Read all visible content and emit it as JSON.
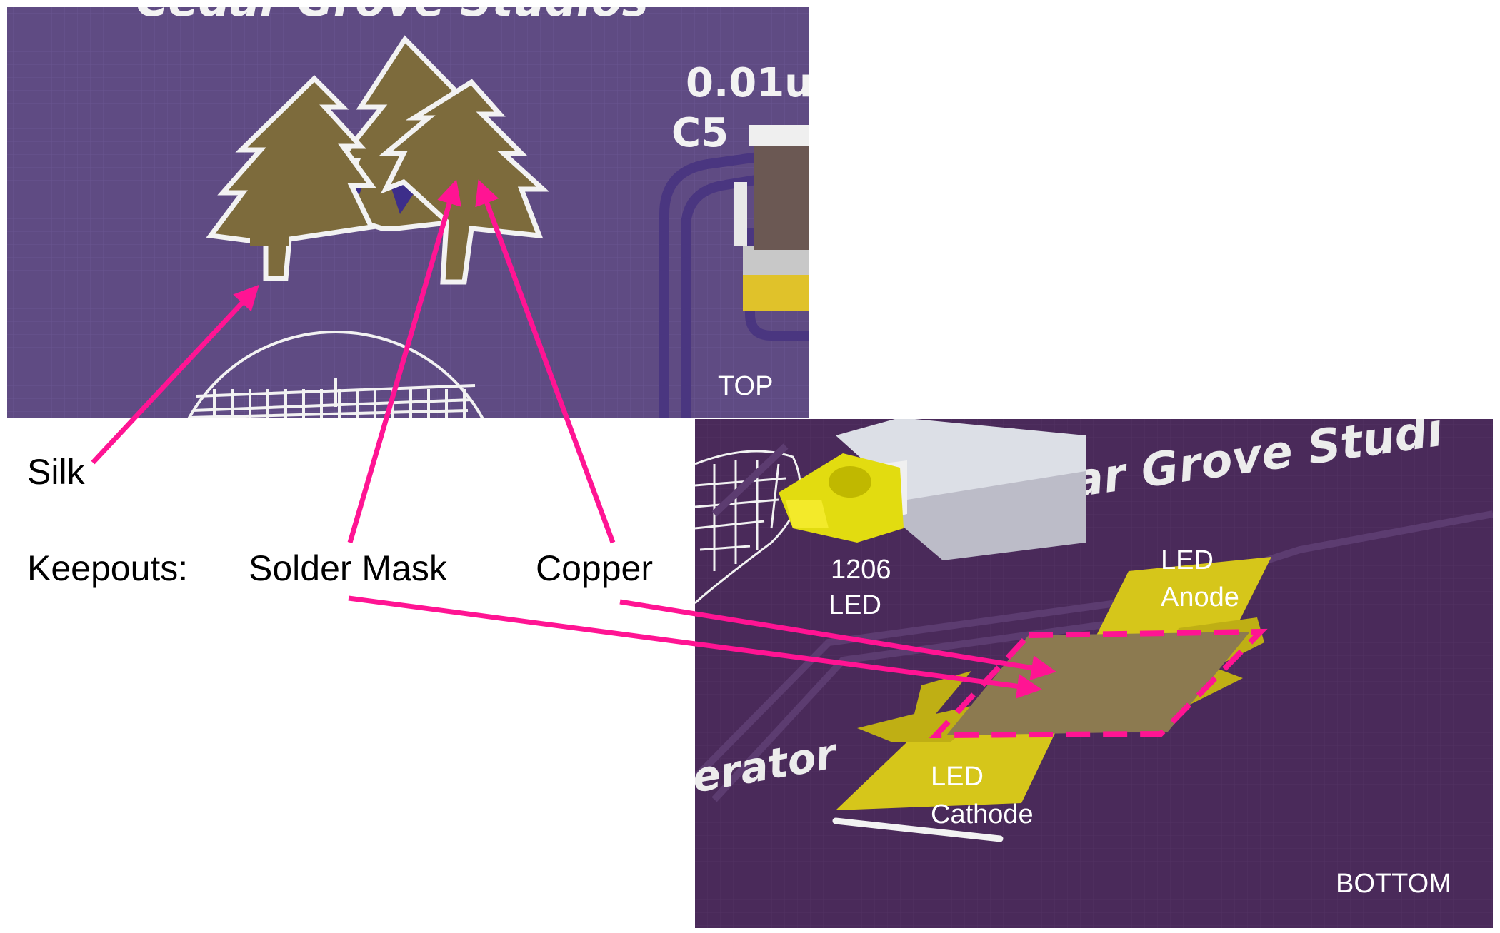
{
  "top_view": {
    "view_label": "TOP",
    "header_text": "Cedar Grove Studios",
    "cap_value": "0.01u",
    "cap_ref": "C5"
  },
  "bottom_view": {
    "view_label": "BOTTOM",
    "header_text": "Cedar Grove Studi",
    "side_text": "erator",
    "led_label_line1": "1206",
    "led_label_line2": "LED",
    "anode_line1": "LED",
    "anode_line2": "Anode",
    "cathode_line1": "LED",
    "cathode_line2": "Cathode"
  },
  "callouts": {
    "silk": "Silk",
    "keepouts": "Keepouts:",
    "solder_mask": "Solder Mask",
    "copper": "Copper"
  },
  "colors": {
    "board_top": "#5f4b83",
    "board_bottom": "#4a2a5a",
    "silk": "#f2f2f2",
    "copper_trees": "#7d6b3c",
    "copper_pads": "#d8c81e",
    "arrows": "#ff1493",
    "text": "#000000"
  }
}
